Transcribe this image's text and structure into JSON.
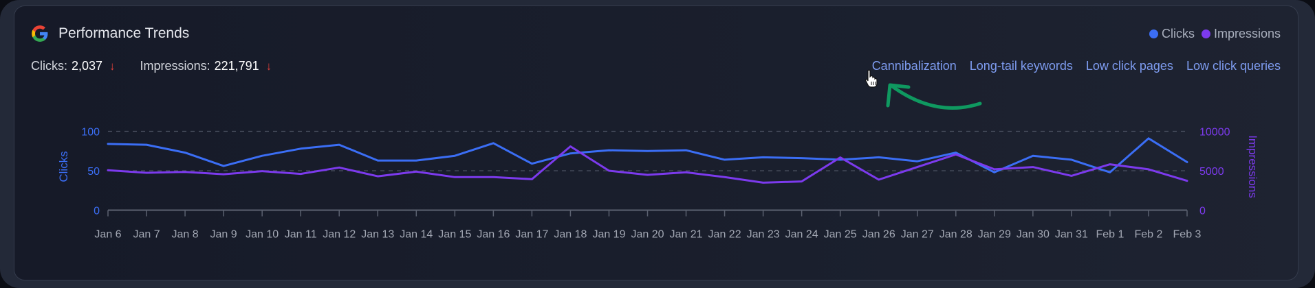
{
  "header": {
    "title": "Performance Trends",
    "icon": "google-g-icon"
  },
  "stats": {
    "clicks_label": "Clicks:",
    "clicks_value": "2,037",
    "clicks_trend": "↓",
    "impressions_label": "Impressions:",
    "impressions_value": "221,791",
    "impressions_trend": "↓"
  },
  "legend": [
    {
      "label": "Clicks",
      "color": "#3b6ef5"
    },
    {
      "label": "Impressions",
      "color": "#7c3aed"
    }
  ],
  "links": [
    {
      "label": "Cannibalization"
    },
    {
      "label": "Long-tail keywords"
    },
    {
      "label": "Low click pages"
    },
    {
      "label": "Low click queries"
    }
  ],
  "colors": {
    "clicks": "#3b6ef5",
    "impressions": "#7c3aed",
    "annotation_arrow": "#0f9960",
    "trend_down": "#e0413a"
  },
  "chart_data": {
    "type": "line",
    "title": "Performance Trends",
    "xlabel": "",
    "ylabel": "Clicks",
    "ylabel_right": "Impressions",
    "ylim": [
      0,
      100
    ],
    "ylim_right": [
      0,
      10000
    ],
    "yticks": [
      0,
      50,
      100
    ],
    "yticks_right": [
      0,
      5000,
      10000
    ],
    "grid": true,
    "legend_position": "top-right",
    "categories": [
      "Jan 6",
      "Jan 7",
      "Jan 8",
      "Jan 9",
      "Jan 10",
      "Jan 11",
      "Jan 12",
      "Jan 13",
      "Jan 14",
      "Jan 15",
      "Jan 16",
      "Jan 17",
      "Jan 18",
      "Jan 19",
      "Jan 20",
      "Jan 21",
      "Jan 22",
      "Jan 23",
      "Jan 24",
      "Jan 25",
      "Jan 26",
      "Jan 27",
      "Jan 28",
      "Jan 29",
      "Jan 30",
      "Jan 31",
      "Feb 1",
      "Feb 2",
      "Feb 3"
    ],
    "series": [
      {
        "name": "Clicks",
        "axis": "left",
        "color": "#3b6ef5",
        "values": [
          84,
          83,
          73,
          56,
          69,
          78,
          83,
          63,
          63,
          69,
          85,
          59,
          72,
          76,
          75,
          76,
          64,
          67,
          66,
          64,
          67,
          62,
          73,
          48,
          69,
          64,
          48,
          91,
          61
        ]
      },
      {
        "name": "Impressions",
        "axis": "right",
        "color": "#7c3aed",
        "values": [
          5060,
          4740,
          4850,
          4560,
          4950,
          4600,
          5410,
          4300,
          4890,
          4190,
          4190,
          3930,
          8090,
          5000,
          4480,
          4800,
          4190,
          3490,
          3640,
          6690,
          3870,
          5470,
          7070,
          5180,
          5470,
          4360,
          5820,
          5180,
          3720
        ]
      }
    ]
  }
}
